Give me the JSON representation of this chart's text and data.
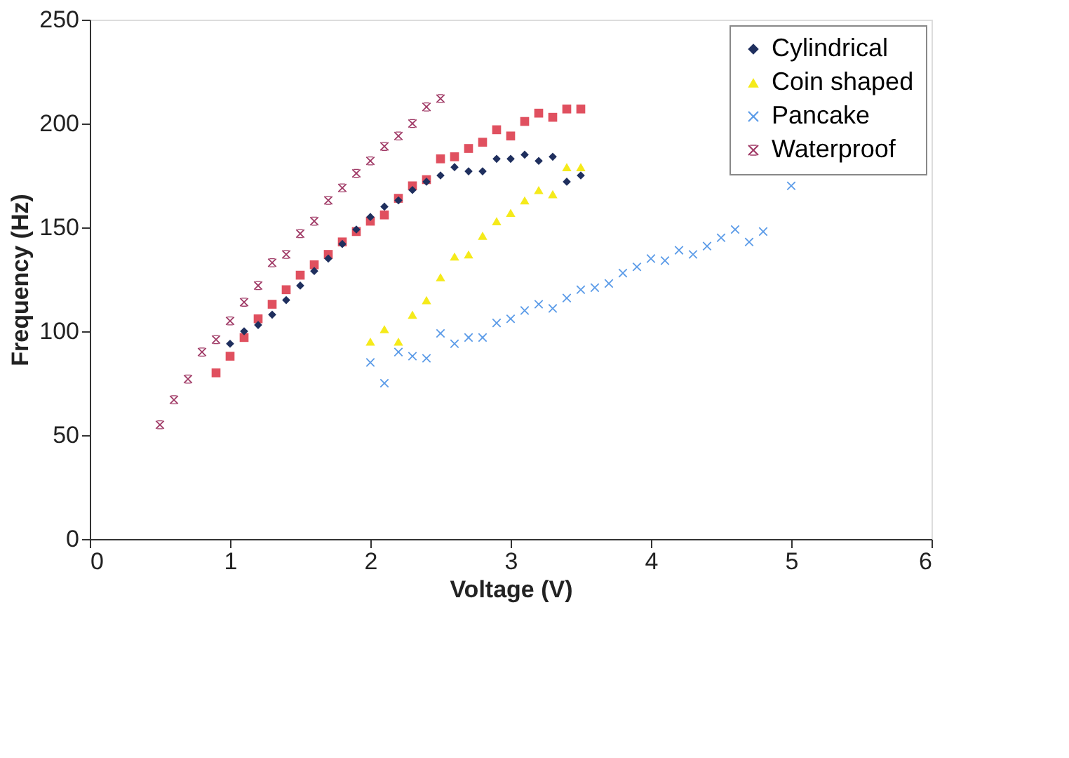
{
  "chart_data": {
    "type": "scatter",
    "xlabel": "Voltage (V)",
    "ylabel": "Frequency (Hz)",
    "xlim": [
      0,
      6
    ],
    "xticks": [
      0,
      1,
      2,
      3,
      4,
      5,
      6
    ],
    "ylim": [
      0,
      250
    ],
    "yticks": [
      0,
      50,
      100,
      150,
      200,
      250
    ],
    "grid": false,
    "legend": "top right",
    "series": [
      {
        "name": "Cylindrical",
        "color": "#1f2f5e",
        "marker": "diamond",
        "x": [
          1.0,
          1.1,
          1.2,
          1.3,
          1.4,
          1.5,
          1.6,
          1.7,
          1.8,
          1.9,
          2.0,
          2.1,
          2.2,
          2.3,
          2.4,
          2.5,
          2.6,
          2.7,
          2.8,
          2.9,
          3.0,
          3.1,
          3.2,
          3.3,
          3.4,
          3.5
        ],
        "values": [
          94,
          100,
          103,
          108,
          115,
          122,
          129,
          135,
          142,
          149,
          155,
          160,
          163,
          168,
          172,
          175,
          179,
          177,
          177,
          183,
          183,
          185,
          182,
          184,
          172,
          175
        ]
      },
      {
        "color": "#e0505f",
        "marker": "square",
        "x": [
          0.9,
          1.0,
          1.1,
          1.2,
          1.3,
          1.4,
          1.5,
          1.6,
          1.7,
          1.8,
          1.9,
          2.0,
          2.1,
          2.2,
          2.3,
          2.4,
          2.5,
          2.6,
          2.7,
          2.8,
          2.9,
          3.0,
          3.1,
          3.2,
          3.3,
          3.4,
          3.5
        ],
        "values": [
          80,
          88,
          97,
          106,
          113,
          120,
          127,
          132,
          137,
          143,
          148,
          153,
          156,
          164,
          170,
          173,
          183,
          184,
          188,
          191,
          197,
          194,
          201,
          205,
          203,
          207,
          207
        ]
      },
      {
        "name": "Coin shaped",
        "color": "#f5ea1a",
        "marker": "triangle",
        "x": [
          2.0,
          2.1,
          2.2,
          2.3,
          2.4,
          2.5,
          2.6,
          2.7,
          2.8,
          2.9,
          3.0,
          3.1,
          3.2,
          3.3,
          3.4,
          3.5
        ],
        "values": [
          95,
          101,
          95,
          108,
          115,
          126,
          136,
          137,
          146,
          153,
          157,
          163,
          168,
          166,
          179,
          179
        ]
      },
      {
        "name": "Pancake",
        "color": "#5b9be8",
        "marker": "cross",
        "x": [
          2.0,
          2.1,
          2.2,
          2.3,
          2.4,
          2.5,
          2.6,
          2.7,
          2.8,
          2.9,
          3.0,
          3.1,
          3.2,
          3.3,
          3.4,
          3.5,
          3.6,
          3.7,
          3.8,
          3.9,
          4.0,
          4.1,
          4.2,
          4.3,
          4.4,
          4.5,
          4.6,
          4.7,
          4.8,
          5.0
        ],
        "values": [
          85,
          75,
          90,
          88,
          87,
          99,
          94,
          97,
          97,
          104,
          106,
          110,
          113,
          111,
          116,
          120,
          121,
          123,
          128,
          131,
          135,
          134,
          139,
          137,
          141,
          145,
          149,
          143,
          148,
          170
        ]
      },
      {
        "name": "Waterproof",
        "color": "#a03a66",
        "marker": "star",
        "x": [
          0.5,
          0.6,
          0.7,
          0.8,
          0.9,
          1.0,
          1.1,
          1.2,
          1.3,
          1.4,
          1.5,
          1.6,
          1.7,
          1.8,
          1.9,
          2.0,
          2.1,
          2.2,
          2.3,
          2.4,
          2.5
        ],
        "values": [
          55,
          67,
          77,
          90,
          96,
          105,
          114,
          122,
          133,
          137,
          147,
          153,
          163,
          169,
          176,
          182,
          189,
          194,
          200,
          208,
          212
        ]
      }
    ]
  }
}
